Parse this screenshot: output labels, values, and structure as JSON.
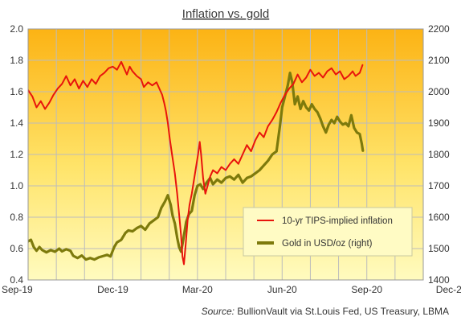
{
  "chart_data": {
    "type": "line",
    "title": "Inflation  vs.  gold",
    "x_ticks": [
      "Sep-19",
      "Dec-19",
      "Mar-20",
      "Jun-20",
      "Sep-20",
      "Dec-20"
    ],
    "y_left": {
      "min": 0.4,
      "max": 2.0,
      "ticks": [
        "2.0",
        "1.8",
        "1.6",
        "1.4",
        "1.2",
        "1.0",
        "0.8",
        "0.6",
        "0.4"
      ]
    },
    "y_right": {
      "min": 1400,
      "max": 2200,
      "ticks": [
        "2200",
        "2100",
        "2000",
        "1900",
        "1800",
        "1700",
        "1600",
        "1500",
        "1400"
      ]
    },
    "grid": true,
    "legend_position": "bottom-right",
    "series": [
      {
        "name": "10-yr TIPS-implied inflation",
        "axis": "left",
        "color": "#e8140c",
        "points": [
          [
            0.0,
            1.61
          ],
          [
            0.15,
            1.57
          ],
          [
            0.3,
            1.5
          ],
          [
            0.45,
            1.54
          ],
          [
            0.6,
            1.49
          ],
          [
            0.75,
            1.53
          ],
          [
            0.9,
            1.58
          ],
          [
            1.05,
            1.62
          ],
          [
            1.2,
            1.65
          ],
          [
            1.35,
            1.7
          ],
          [
            1.5,
            1.64
          ],
          [
            1.65,
            1.68
          ],
          [
            1.8,
            1.62
          ],
          [
            1.95,
            1.67
          ],
          [
            2.1,
            1.63
          ],
          [
            2.25,
            1.68
          ],
          [
            2.4,
            1.65
          ],
          [
            2.55,
            1.7
          ],
          [
            2.7,
            1.72
          ],
          [
            2.85,
            1.75
          ],
          [
            3.0,
            1.76
          ],
          [
            3.15,
            1.74
          ],
          [
            3.3,
            1.79
          ],
          [
            3.4,
            1.75
          ],
          [
            3.5,
            1.71
          ],
          [
            3.6,
            1.76
          ],
          [
            3.7,
            1.73
          ],
          [
            3.85,
            1.7
          ],
          [
            4.0,
            1.68
          ],
          [
            4.1,
            1.63
          ],
          [
            4.25,
            1.66
          ],
          [
            4.4,
            1.64
          ],
          [
            4.55,
            1.66
          ],
          [
            4.65,
            1.62
          ],
          [
            4.75,
            1.58
          ],
          [
            4.82,
            1.53
          ],
          [
            4.88,
            1.48
          ],
          [
            4.95,
            1.4
          ],
          [
            5.02,
            1.3
          ],
          [
            5.1,
            1.2
          ],
          [
            5.2,
            1.08
          ],
          [
            5.28,
            0.95
          ],
          [
            5.35,
            0.82
          ],
          [
            5.42,
            0.68
          ],
          [
            5.47,
            0.55
          ],
          [
            5.52,
            0.5
          ],
          [
            5.58,
            0.62
          ],
          [
            5.65,
            0.78
          ],
          [
            5.72,
            0.88
          ],
          [
            5.8,
            0.95
          ],
          [
            5.88,
            1.04
          ],
          [
            5.95,
            1.12
          ],
          [
            6.02,
            1.2
          ],
          [
            6.08,
            1.28
          ],
          [
            6.13,
            1.2
          ],
          [
            6.2,
            1.05
          ],
          [
            6.28,
            0.95
          ],
          [
            6.36,
            1.0
          ],
          [
            6.45,
            1.06
          ],
          [
            6.55,
            1.1
          ],
          [
            6.7,
            1.08
          ],
          [
            6.85,
            1.12
          ],
          [
            7.0,
            1.1
          ],
          [
            7.15,
            1.14
          ],
          [
            7.3,
            1.17
          ],
          [
            7.45,
            1.14
          ],
          [
            7.6,
            1.2
          ],
          [
            7.75,
            1.26
          ],
          [
            7.9,
            1.22
          ],
          [
            8.05,
            1.29
          ],
          [
            8.2,
            1.34
          ],
          [
            8.35,
            1.31
          ],
          [
            8.5,
            1.38
          ],
          [
            8.65,
            1.42
          ],
          [
            8.8,
            1.47
          ],
          [
            8.95,
            1.53
          ],
          [
            9.1,
            1.58
          ],
          [
            9.25,
            1.62
          ],
          [
            9.4,
            1.65
          ],
          [
            9.55,
            1.71
          ],
          [
            9.7,
            1.66
          ],
          [
            9.85,
            1.69
          ],
          [
            10.0,
            1.74
          ],
          [
            10.15,
            1.7
          ],
          [
            10.3,
            1.72
          ],
          [
            10.45,
            1.69
          ],
          [
            10.6,
            1.73
          ],
          [
            10.75,
            1.75
          ],
          [
            10.9,
            1.71
          ],
          [
            11.05,
            1.73
          ],
          [
            11.2,
            1.68
          ],
          [
            11.35,
            1.7
          ],
          [
            11.5,
            1.73
          ],
          [
            11.6,
            1.7
          ],
          [
            11.75,
            1.72
          ],
          [
            11.85,
            1.77
          ]
        ]
      },
      {
        "name": "Gold in USD/oz (right)",
        "axis": "right",
        "color": "#7d7a0c",
        "points": [
          [
            0.0,
            1523
          ],
          [
            0.1,
            1528
          ],
          [
            0.2,
            1505
          ],
          [
            0.3,
            1493
          ],
          [
            0.4,
            1505
          ],
          [
            0.5,
            1495
          ],
          [
            0.65,
            1488
          ],
          [
            0.8,
            1495
          ],
          [
            0.95,
            1490
          ],
          [
            1.1,
            1500
          ],
          [
            1.2,
            1491
          ],
          [
            1.35,
            1498
          ],
          [
            1.5,
            1493
          ],
          [
            1.6,
            1477
          ],
          [
            1.75,
            1470
          ],
          [
            1.9,
            1478
          ],
          [
            2.05,
            1465
          ],
          [
            2.2,
            1470
          ],
          [
            2.35,
            1465
          ],
          [
            2.5,
            1472
          ],
          [
            2.65,
            1476
          ],
          [
            2.8,
            1480
          ],
          [
            2.92,
            1475
          ],
          [
            3.05,
            1505
          ],
          [
            3.15,
            1520
          ],
          [
            3.3,
            1528
          ],
          [
            3.45,
            1550
          ],
          [
            3.55,
            1558
          ],
          [
            3.7,
            1555
          ],
          [
            3.85,
            1565
          ],
          [
            4.0,
            1572
          ],
          [
            4.15,
            1560
          ],
          [
            4.3,
            1580
          ],
          [
            4.45,
            1590
          ],
          [
            4.6,
            1600
          ],
          [
            4.72,
            1630
          ],
          [
            4.85,
            1650
          ],
          [
            4.95,
            1670
          ],
          [
            5.05,
            1640
          ],
          [
            5.12,
            1605
          ],
          [
            5.2,
            1580
          ],
          [
            5.28,
            1535
          ],
          [
            5.35,
            1505
          ],
          [
            5.42,
            1490
          ],
          [
            5.5,
            1530
          ],
          [
            5.6,
            1585
          ],
          [
            5.7,
            1610
          ],
          [
            5.8,
            1620
          ],
          [
            5.9,
            1670
          ],
          [
            6.0,
            1700
          ],
          [
            6.1,
            1705
          ],
          [
            6.2,
            1690
          ],
          [
            6.32,
            1710
          ],
          [
            6.45,
            1725
          ],
          [
            6.55,
            1705
          ],
          [
            6.7,
            1720
          ],
          [
            6.85,
            1710
          ],
          [
            7.0,
            1725
          ],
          [
            7.15,
            1730
          ],
          [
            7.3,
            1720
          ],
          [
            7.45,
            1735
          ],
          [
            7.6,
            1710
          ],
          [
            7.75,
            1725
          ],
          [
            7.9,
            1730
          ],
          [
            8.05,
            1740
          ],
          [
            8.2,
            1750
          ],
          [
            8.35,
            1765
          ],
          [
            8.5,
            1780
          ],
          [
            8.65,
            1800
          ],
          [
            8.8,
            1810
          ],
          [
            8.92,
            1890
          ],
          [
            9.0,
            1950
          ],
          [
            9.1,
            1985
          ],
          [
            9.2,
            2020
          ],
          [
            9.28,
            2060
          ],
          [
            9.36,
            2030
          ],
          [
            9.45,
            1960
          ],
          [
            9.55,
            1985
          ],
          [
            9.65,
            1945
          ],
          [
            9.75,
            1970
          ],
          [
            9.85,
            1950
          ],
          [
            9.95,
            1940
          ],
          [
            10.05,
            1960
          ],
          [
            10.15,
            1945
          ],
          [
            10.25,
            1935
          ],
          [
            10.35,
            1915
          ],
          [
            10.45,
            1890
          ],
          [
            10.55,
            1870
          ],
          [
            10.65,
            1895
          ],
          [
            10.75,
            1910
          ],
          [
            10.85,
            1900
          ],
          [
            10.95,
            1920
          ],
          [
            11.05,
            1905
          ],
          [
            11.15,
            1895
          ],
          [
            11.25,
            1900
          ],
          [
            11.35,
            1890
          ],
          [
            11.45,
            1925
          ],
          [
            11.55,
            1885
          ],
          [
            11.65,
            1870
          ],
          [
            11.75,
            1865
          ],
          [
            11.82,
            1835
          ],
          [
            11.86,
            1812
          ]
        ]
      }
    ]
  },
  "legend": {
    "item_1": "10-yr TIPS-implied inflation",
    "item_2": "Gold in USD/oz (right)"
  },
  "source": {
    "label": "Source:",
    "text": " BullionVault via St.Louis Fed, US Treasury, LBMA"
  },
  "colors": {
    "plot_top": "#fcb314",
    "plot_bottom": "#fffbbf",
    "grid": "#bcbcbc",
    "inflation": "#e8140c",
    "gold": "#7d7a0c"
  }
}
